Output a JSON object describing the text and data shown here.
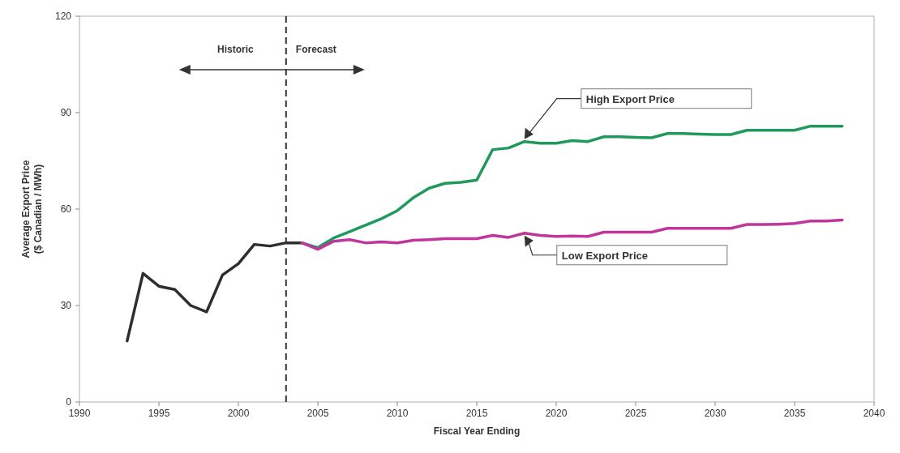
{
  "chart_data": {
    "type": "line",
    "xlabel": "Fiscal Year Ending",
    "ylabel": "Average Export Price\n($ Canadian / MWh)",
    "xlim": [
      1990,
      2040
    ],
    "ylim": [
      0,
      120
    ],
    "xticks": [
      1990,
      1995,
      2000,
      2005,
      2010,
      2015,
      2020,
      2025,
      2030,
      2035,
      2040
    ],
    "yticks": [
      0,
      30,
      60,
      90,
      120
    ],
    "grid": false,
    "line_style": "solid",
    "ref_lines": [
      {
        "axis": "x",
        "value": 2003,
        "label": null,
        "line_style": "dashed",
        "color": "#333333"
      }
    ],
    "annotations": [
      "Historic",
      "Forecast"
    ],
    "series": [
      {
        "color": "#2e2e2e",
        "x": [
          1993,
          1994,
          1995,
          1996,
          1997,
          1998,
          1999,
          2000,
          2001,
          2002,
          2003,
          2004
        ],
        "values": [
          19,
          40,
          36,
          35,
          30,
          28,
          39.5,
          43,
          49,
          48.5,
          49.5,
          49.5
        ]
      },
      {
        "name": "High Export Price",
        "color": "#1f9a5c",
        "x": [
          2004,
          2005,
          2006,
          2007,
          2008,
          2009,
          2010,
          2011,
          2012,
          2013,
          2014,
          2015,
          2016,
          2017,
          2018,
          2019,
          2020,
          2021,
          2022,
          2023,
          2024,
          2025,
          2026,
          2027,
          2028,
          2029,
          2030,
          2031,
          2032,
          2033,
          2034,
          2035,
          2036,
          2037,
          2038
        ],
        "values": [
          49.5,
          48,
          51,
          53,
          55,
          57,
          59.5,
          63.5,
          66.5,
          68,
          68.3,
          69,
          78.5,
          79,
          81,
          80.5,
          80.5,
          81.3,
          81,
          82.5,
          82.5,
          82.3,
          82.2,
          83.5,
          83.5,
          83.3,
          83.2,
          83.2,
          84.5,
          84.5,
          84.5,
          84.5,
          85.8,
          85.8,
          85.8
        ]
      },
      {
        "name": "Low Export Price",
        "color": "#c0369a",
        "x": [
          2004,
          2005,
          2006,
          2007,
          2008,
          2009,
          2010,
          2011,
          2012,
          2013,
          2014,
          2015,
          2016,
          2017,
          2018,
          2019,
          2020,
          2021,
          2022,
          2023,
          2024,
          2025,
          2026,
          2027,
          2028,
          2029,
          2030,
          2031,
          2032,
          2033,
          2034,
          2035,
          2036,
          2037,
          2038
        ],
        "values": [
          49.5,
          47.5,
          50,
          50.5,
          49.5,
          49.8,
          49.5,
          50.3,
          50.5,
          50.8,
          50.8,
          50.8,
          51.8,
          51.2,
          52.5,
          51.8,
          51.5,
          51.6,
          51.5,
          52.8,
          52.8,
          52.8,
          52.8,
          54,
          54,
          54,
          54,
          54,
          55.2,
          55.2,
          55.3,
          55.5,
          56.3,
          56.3,
          56.6
        ]
      }
    ]
  }
}
